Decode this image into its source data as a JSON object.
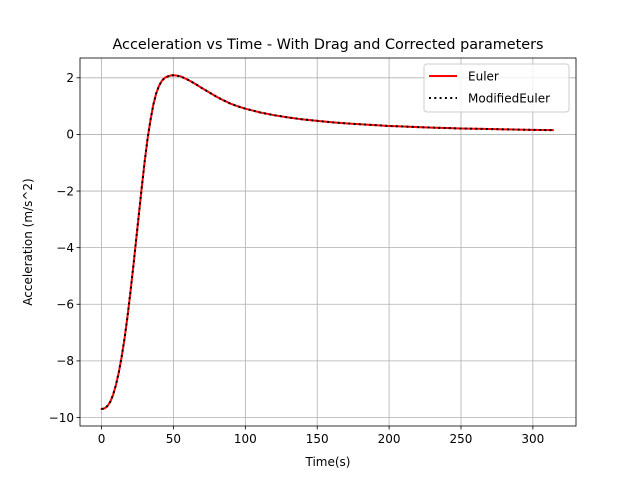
{
  "chart_data": {
    "type": "line",
    "title": "Acceleration vs Time - With Drag and Corrected parameters",
    "xlabel": "Time(s)",
    "ylabel": "Acceleration (m/s^2)",
    "xlim": [
      -15,
      330
    ],
    "ylim": [
      -10.3,
      2.7
    ],
    "xticks": [
      0,
      50,
      100,
      150,
      200,
      250,
      300
    ],
    "yticks": [
      -10,
      -8,
      -6,
      -4,
      -2,
      0,
      2
    ],
    "grid": true,
    "legend_position": "top-right",
    "series": [
      {
        "name": "Euler",
        "color": "#ff0000",
        "style": "solid",
        "x": [
          0,
          2,
          4,
          6,
          8,
          10,
          12,
          14,
          16,
          18,
          20,
          22,
          24,
          26,
          28,
          30,
          32,
          34,
          36,
          38,
          40,
          42,
          44,
          46,
          48,
          50,
          52,
          55,
          58,
          62,
          66,
          70,
          75,
          80,
          85,
          90,
          95,
          100,
          110,
          120,
          130,
          140,
          150,
          160,
          170,
          180,
          190,
          200,
          210,
          220,
          230,
          240,
          250,
          260,
          270,
          280,
          290,
          300,
          314
        ],
        "y": [
          -9.7,
          -9.68,
          -9.6,
          -9.45,
          -9.2,
          -8.85,
          -8.4,
          -7.85,
          -7.2,
          -6.45,
          -5.6,
          -4.7,
          -3.75,
          -2.8,
          -1.85,
          -0.95,
          -0.15,
          0.5,
          1.05,
          1.45,
          1.72,
          1.9,
          2.0,
          2.05,
          2.08,
          2.09,
          2.08,
          2.05,
          1.98,
          1.88,
          1.76,
          1.63,
          1.48,
          1.33,
          1.2,
          1.08,
          0.99,
          0.91,
          0.78,
          0.68,
          0.6,
          0.53,
          0.48,
          0.43,
          0.39,
          0.36,
          0.33,
          0.3,
          0.28,
          0.26,
          0.24,
          0.225,
          0.21,
          0.2,
          0.19,
          0.18,
          0.17,
          0.16,
          0.15
        ]
      },
      {
        "name": "ModifiedEuler",
        "color": "#000000",
        "style": "dotted",
        "x": [
          0,
          2,
          4,
          6,
          8,
          10,
          12,
          14,
          16,
          18,
          20,
          22,
          24,
          26,
          28,
          30,
          32,
          34,
          36,
          38,
          40,
          42,
          44,
          46,
          48,
          50,
          52,
          55,
          58,
          62,
          66,
          70,
          75,
          80,
          85,
          90,
          95,
          100,
          110,
          120,
          130,
          140,
          150,
          160,
          170,
          180,
          190,
          200,
          210,
          220,
          230,
          240,
          250,
          260,
          270,
          280,
          290,
          300,
          314
        ],
        "y": [
          -9.7,
          -9.68,
          -9.6,
          -9.45,
          -9.2,
          -8.85,
          -8.4,
          -7.85,
          -7.2,
          -6.45,
          -5.6,
          -4.7,
          -3.75,
          -2.8,
          -1.85,
          -0.95,
          -0.15,
          0.5,
          1.05,
          1.45,
          1.72,
          1.9,
          2.0,
          2.05,
          2.08,
          2.09,
          2.08,
          2.05,
          1.98,
          1.88,
          1.76,
          1.63,
          1.48,
          1.33,
          1.2,
          1.08,
          0.99,
          0.91,
          0.78,
          0.68,
          0.6,
          0.53,
          0.48,
          0.43,
          0.39,
          0.36,
          0.33,
          0.3,
          0.28,
          0.26,
          0.24,
          0.225,
          0.21,
          0.2,
          0.19,
          0.18,
          0.17,
          0.16,
          0.15
        ]
      }
    ]
  }
}
